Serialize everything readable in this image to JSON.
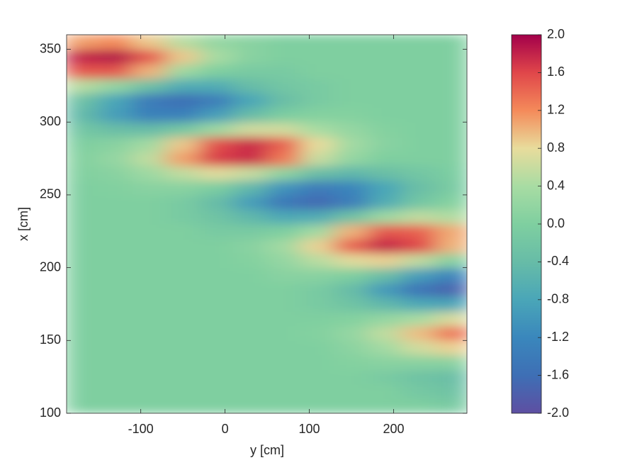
{
  "chart_data": {
    "type": "heatmap",
    "xlabel": "y [cm]",
    "ylabel": "x [cm]",
    "x": [
      -170,
      -130,
      -90,
      -50,
      -10,
      30,
      70,
      110,
      150,
      190,
      230,
      270
    ],
    "y": [
      105,
      115,
      125,
      135,
      145,
      155,
      165,
      175,
      185,
      195,
      205,
      215,
      225,
      235,
      245,
      255,
      265,
      275,
      285,
      295,
      305,
      315,
      325,
      335,
      345,
      355
    ],
    "z": [
      [
        0,
        0,
        0,
        0,
        0,
        0,
        0,
        0,
        0,
        0,
        0,
        -0.1
      ],
      [
        0,
        0,
        0,
        0,
        0,
        0,
        0,
        0,
        0,
        0,
        -0.15,
        -0.25
      ],
      [
        0,
        0,
        0,
        0,
        0,
        0,
        0,
        0,
        0,
        -0.1,
        -0.25,
        -0.35
      ],
      [
        0,
        0,
        0,
        0,
        0,
        0,
        0,
        0,
        0.05,
        0.1,
        0.1,
        0.1
      ],
      [
        0,
        0,
        0,
        0,
        0,
        0,
        0,
        0,
        0.13,
        0.35,
        0.65,
        0.85
      ],
      [
        0,
        0,
        0,
        0,
        0,
        0,
        0,
        0.05,
        0.2,
        0.55,
        0.95,
        1.35
      ],
      [
        0,
        0,
        0,
        0,
        0,
        0,
        0,
        0,
        0.05,
        0.2,
        0.4,
        0.7
      ],
      [
        0,
        0,
        0,
        0,
        0,
        0,
        0,
        -0.1,
        -0.25,
        -0.5,
        -0.75,
        -0.8
      ],
      [
        0,
        0,
        0,
        0,
        0,
        0,
        0,
        -0.1,
        -0.4,
        -0.95,
        -1.5,
        -1.75
      ],
      [
        0,
        0,
        0,
        0,
        0,
        0,
        0.1,
        0.1,
        0,
        -0.35,
        -0.9,
        -1.25
      ],
      [
        0,
        0,
        0,
        0,
        0,
        0.05,
        0.2,
        0.5,
        0.75,
        0.85,
        0.55,
        0.05
      ],
      [
        0,
        0,
        0,
        0,
        0,
        0.1,
        0.35,
        0.85,
        1.45,
        1.8,
        1.6,
        1.0
      ],
      [
        0,
        0,
        0,
        0,
        -0.1,
        -0.1,
        0,
        0.35,
        1.0,
        1.5,
        1.45,
        1.05
      ],
      [
        0,
        0,
        0,
        -0.1,
        -0.25,
        -0.5,
        -0.75,
        -0.7,
        -0.25,
        0.3,
        0.55,
        0.45
      ],
      [
        0,
        0,
        0,
        -0.1,
        -0.4,
        -0.9,
        -1.45,
        -1.65,
        -1.35,
        -0.7,
        -0.2,
        0.05
      ],
      [
        0,
        0.03,
        0.1,
        0.1,
        -0.05,
        -0.5,
        -1.05,
        -1.4,
        -1.25,
        -0.8,
        -0.35,
        -0.1
      ],
      [
        0.03,
        0.1,
        0.3,
        0.55,
        0.75,
        0.6,
        0.15,
        -0.35,
        -0.5,
        -0.35,
        -0.2,
        -0.05
      ],
      [
        0.06,
        0.2,
        0.55,
        1.1,
        1.65,
        1.75,
        1.3,
        0.6,
        0.2,
        0,
        0,
        0
      ],
      [
        0,
        0.1,
        0.35,
        0.9,
        1.55,
        1.75,
        1.45,
        0.8,
        0.35,
        0.1,
        0,
        0
      ],
      [
        -0.2,
        -0.35,
        -0.4,
        -0.15,
        0.3,
        0.65,
        0.65,
        0.4,
        0.2,
        0.05,
        0,
        0
      ],
      [
        -0.45,
        -0.9,
        -1.3,
        -1.3,
        -0.9,
        -0.4,
        -0.05,
        0.05,
        0.05,
        0,
        0,
        0
      ],
      [
        -0.3,
        -0.8,
        -1.4,
        -1.6,
        -1.35,
        -0.8,
        -0.35,
        -0.1,
        0,
        0,
        0,
        0
      ],
      [
        0.5,
        0.2,
        -0.3,
        -0.7,
        -0.7,
        -0.4,
        -0.2,
        -0.1,
        0,
        0,
        0,
        0
      ],
      [
        1.5,
        1.5,
        1.0,
        0.3,
        0,
        -0.1,
        -0.1,
        0,
        0,
        0,
        0,
        0
      ],
      [
        1.8,
        1.9,
        1.5,
        0.9,
        0.4,
        0.1,
        0,
        0,
        0,
        0,
        0,
        0
      ],
      [
        1.1,
        1.2,
        0.9,
        0.5,
        0.2,
        0.1,
        0,
        0,
        0,
        0,
        0,
        0
      ]
    ],
    "xlim": [
      -188,
      287
    ],
    "ylim": [
      100,
      360
    ],
    "xticks": [
      -100,
      0,
      100,
      200
    ],
    "yticks": [
      100,
      150,
      200,
      250,
      300,
      350
    ],
    "clim": [
      -2,
      2
    ],
    "cticks": [
      {
        "value": 2,
        "label": "2.0"
      },
      {
        "value": 1.6,
        "label": "1.6"
      },
      {
        "value": 1.2,
        "label": "1.2"
      },
      {
        "value": 0.8,
        "label": "0.8"
      },
      {
        "value": 0.4,
        "label": "0.4"
      },
      {
        "value": 0,
        "label": "0.0"
      },
      {
        "value": -0.4,
        "label": "-0.4"
      },
      {
        "value": -0.8,
        "label": "-0.8"
      },
      {
        "value": -1.2,
        "label": "-1.2"
      },
      {
        "value": -1.6,
        "label": "-1.6"
      },
      {
        "value": -2,
        "label": "-2.0"
      }
    ],
    "colormap": [
      "#5e4fa2",
      "#3e6fb5",
      "#3a87bc",
      "#4aa6b8",
      "#67bca7",
      "#7fcfa0",
      "#a8dca3",
      "#e8dc9c",
      "#f48a5a",
      "#e0464a",
      "#a3004a"
    ]
  }
}
